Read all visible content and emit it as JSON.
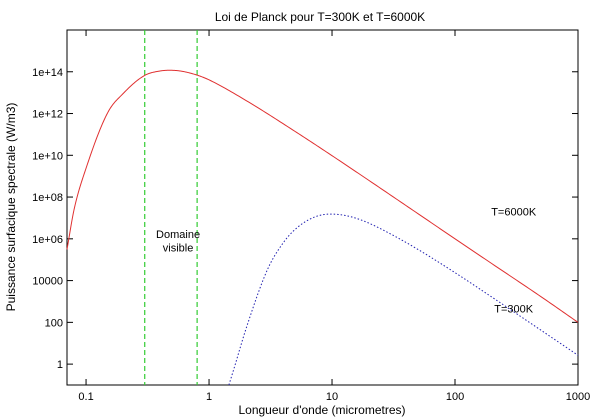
{
  "chart_data": {
    "type": "line",
    "title": "Loi de Planck pour T=300K et T=6000K",
    "xlabel": "Longueur d'onde (micrometres)",
    "ylabel": "Puissance surfacique spectrale (W/m3)",
    "x_scale": "log",
    "y_scale": "log",
    "xlim": [
      0.07,
      1000
    ],
    "ylim": [
      0.1,
      10000000000000000
    ],
    "grid": false,
    "x_ticks": [
      {
        "value": 0.1,
        "label": "0.1"
      },
      {
        "value": 1,
        "label": "1"
      },
      {
        "value": 10,
        "label": "10"
      },
      {
        "value": 100,
        "label": "100"
      },
      {
        "value": 1000,
        "label": "1000"
      }
    ],
    "y_ticks": [
      {
        "value": 1,
        "label": "1"
      },
      {
        "value": 100,
        "label": "100"
      },
      {
        "value": 10000,
        "label": "10000"
      },
      {
        "value": 1000000,
        "label": "1e+06"
      },
      {
        "value": 100000000,
        "label": "1e+08"
      },
      {
        "value": 10000000000,
        "label": "1e+10"
      },
      {
        "value": 1000000000000,
        "label": "1e+12"
      },
      {
        "value": 100000000000000,
        "label": "1e+14"
      }
    ],
    "series": [
      {
        "name": "T=6000K",
        "color": "#e03030",
        "style": "solid",
        "x": [
          0.07,
          0.08,
          0.1,
          0.15,
          0.2,
          0.3,
          0.4,
          0.48,
          0.6,
          0.8,
          1,
          2,
          5,
          10,
          20,
          50,
          100,
          200,
          500,
          1000
        ],
        "y": [
          310000.0,
          26000000.0,
          2400000000.0,
          1100000000000.0,
          9000000000000.0,
          67000000000000.0,
          109000000000000.0,
          118000000000000.0,
          106000000000000.0,
          69000000000000.0,
          41000000000000.0,
          4200000000000.0,
          140000000000.0,
          9600000000.0,
          620000000.0,
          16000000.0,
          1000000.0,
          64000.0,
          1700.0,
          100.0
        ]
      },
      {
        "name": "T=300K",
        "color": "#2020b0",
        "style": "dotted",
        "x": [
          1.45,
          1.6,
          2,
          3,
          4,
          5,
          7,
          9.66,
          12,
          15,
          20,
          30,
          50,
          100,
          200,
          500,
          1000
        ],
        "y": [
          0.1,
          0.65,
          50.0,
          36000.0,
          630000.0,
          2800000.0,
          10300000.0,
          15300000.0,
          14000000.0,
          10500000.0,
          5600000.0,
          1700000.0,
          310000.0,
          24000.0,
          1600.0,
          42.0,
          2.65
        ]
      }
    ],
    "annotations": [
      {
        "text": "T=6000K",
        "x": 300,
        "y": 13000000.0
      },
      {
        "text": "T=300K",
        "x": 300,
        "y": 300
      },
      {
        "text": "Domaine",
        "x": 0.56,
        "y": 1100000.0
      },
      {
        "text": "visible",
        "x": 0.56,
        "y": 250000.0
      }
    ],
    "markers": [
      {
        "type": "vertical-dashed",
        "x": 0.3,
        "color": "#33cc33"
      },
      {
        "type": "vertical-dashed",
        "x": 0.8,
        "color": "#33cc33"
      }
    ]
  }
}
